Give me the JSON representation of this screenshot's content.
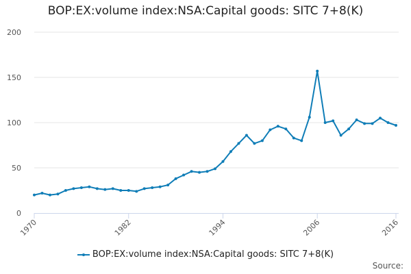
{
  "chart_data": {
    "type": "line",
    "title": "BOP:EX:volume index:NSA:Capital goods: SITC 7+8(K)",
    "xlabel": "",
    "ylabel": "",
    "ylim": [
      0,
      200
    ],
    "yticks": [
      0,
      50,
      100,
      150,
      200
    ],
    "xlim": [
      1970,
      2016
    ],
    "xtick_labels": [
      "1970",
      "1982",
      "1994",
      "2006",
      "2016"
    ],
    "legend_position": "bottom-center",
    "series": [
      {
        "name": "BOP:EX:volume index:NSA:Capital goods: SITC 7+8(K)",
        "color": "#0f7db7",
        "x": [
          1970,
          1971,
          1972,
          1973,
          1974,
          1975,
          1976,
          1977,
          1978,
          1979,
          1980,
          1981,
          1982,
          1983,
          1984,
          1985,
          1986,
          1987,
          1988,
          1989,
          1990,
          1991,
          1992,
          1993,
          1994,
          1995,
          1996,
          1997,
          1998,
          1999,
          2000,
          2001,
          2002,
          2003,
          2004,
          2005,
          2006,
          2007,
          2008,
          2009,
          2010,
          2011,
          2012,
          2013,
          2014,
          2015,
          2016
        ],
        "values": [
          20,
          22,
          20,
          21,
          25,
          27,
          28,
          29,
          27,
          26,
          27,
          25,
          25,
          24,
          27,
          28,
          29,
          31,
          38,
          42,
          46,
          45,
          46,
          49,
          57,
          68,
          77,
          86,
          77,
          80,
          92,
          96,
          93,
          83,
          80,
          106,
          157,
          100,
          102,
          86,
          93,
          103,
          99,
          99,
          105,
          100,
          97
        ]
      }
    ]
  },
  "credits": "Source:"
}
